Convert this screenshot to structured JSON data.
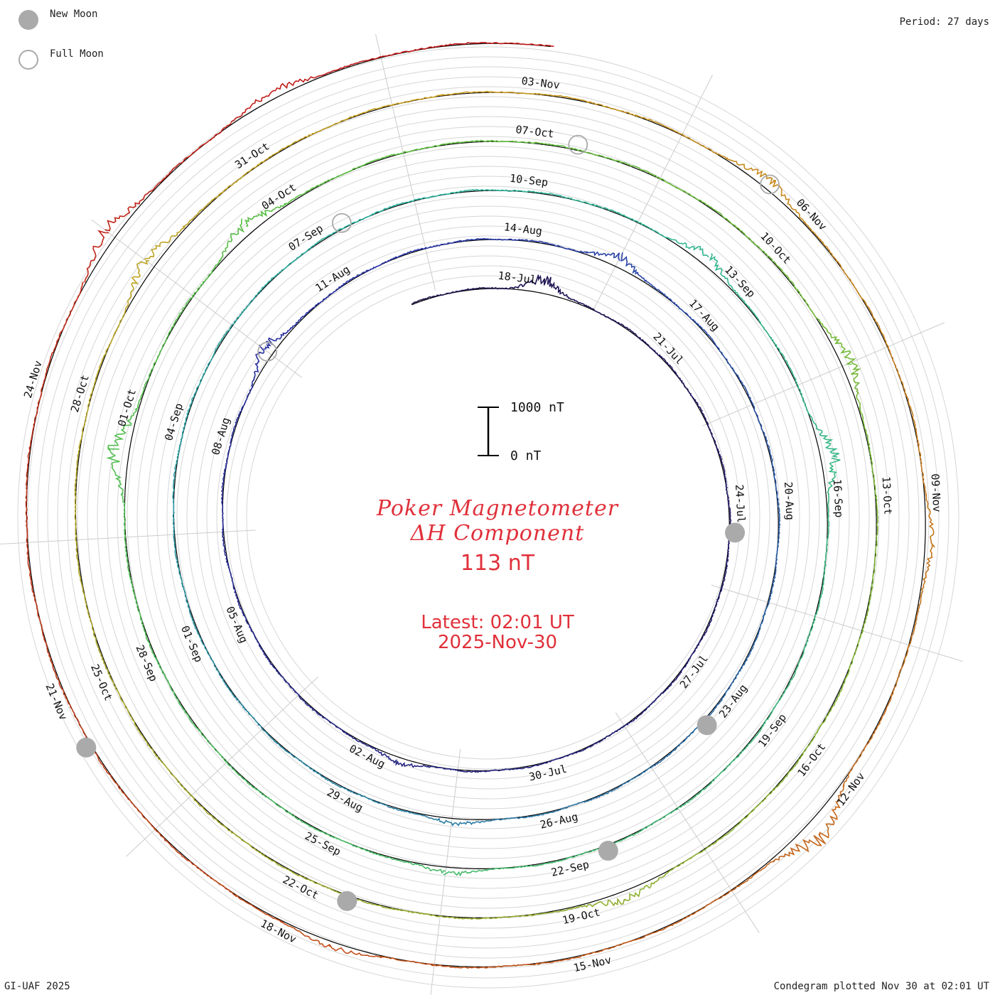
{
  "legend": {
    "new_moon": "New Moon",
    "full_moon": "Full Moon",
    "new_moon_color": "#aaaaaa"
  },
  "period_label": "Period: 27 days",
  "credit": "GI-UAF 2025",
  "plotted": "Condegram plotted Nov 30 at 02:01 UT",
  "title": {
    "line1": "Poker Magnetometer",
    "line2": "ΔH Component",
    "value": "113 nT",
    "latest": "Latest: 02:01 UT",
    "date": "2025-Nov-30",
    "color": "#e0303a"
  },
  "chart_data": {
    "type": "line",
    "title": "Poker Magnetometer ΔH Component",
    "period_days": 27,
    "start_date": "2025-07-16",
    "end_date": "2025-11-30",
    "scale_bar": {
      "top_label": "1000 nT",
      "bottom_label": "0 nT",
      "range_nT": [
        0,
        1000
      ]
    },
    "latest_value_nT": 113,
    "cycles": [
      {
        "color": "#1e0f4a",
        "date_labels": [
          "18-Jul",
          "21-Jul",
          "24-Jul",
          "27-Jul",
          "30-Jul",
          "02-Aug",
          "05-Aug",
          "08-Aug",
          "11-Aug"
        ]
      },
      {
        "color": "#2a35a8",
        "date_labels": [
          "14-Aug",
          "17-Aug",
          "20-Aug",
          "23-Aug",
          "26-Aug",
          "29-Aug",
          "01-Sep",
          "04-Sep",
          "07-Sep"
        ]
      },
      {
        "color": "#2bb4a0",
        "date_labels": [
          "10-Sep",
          "13-Sep",
          "16-Sep",
          "19-Sep",
          "22-Sep",
          "25-Sep",
          "28-Sep",
          "01-Oct",
          "04-Oct"
        ]
      },
      {
        "color": "#5cc040",
        "date_labels": [
          "07-Oct",
          "10-Oct",
          "13-Oct",
          "16-Oct",
          "19-Oct",
          "22-Oct",
          "25-Oct",
          "28-Oct",
          "31-Oct"
        ]
      },
      {
        "color": "#c8a020",
        "date_labels": [
          "03-Nov",
          "06-Nov",
          "09-Nov",
          "12-Nov",
          "15-Nov",
          "18-Nov",
          "21-Nov",
          "24-Nov"
        ]
      },
      {
        "color": "#c01818",
        "date_labels": []
      }
    ],
    "new_moon_dates": [
      "2025-07-24",
      "2025-08-23",
      "2025-09-21",
      "2025-10-21",
      "2025-11-20"
    ],
    "full_moon_dates": [
      "2025-08-09",
      "2025-09-07",
      "2025-10-07",
      "2025-11-05"
    ],
    "disturbances": [
      {
        "date": "2025-07-18",
        "peak_nT": 400
      },
      {
        "date": "2025-08-01",
        "peak_nT": 150
      },
      {
        "date": "2025-08-09",
        "peak_nT": 320
      },
      {
        "date": "2025-08-15",
        "peak_nT": 300
      },
      {
        "date": "2025-08-27",
        "peak_nT": 120
      },
      {
        "date": "2025-09-12",
        "peak_nT": 280
      },
      {
        "date": "2025-09-15",
        "peak_nT": 400
      },
      {
        "date": "2025-09-23",
        "peak_nT": 150
      },
      {
        "date": "2025-09-30",
        "peak_nT": 450
      },
      {
        "date": "2025-10-03",
        "peak_nT": 350
      },
      {
        "date": "2025-10-11",
        "peak_nT": 300
      },
      {
        "date": "2025-10-18",
        "peak_nT": 250
      },
      {
        "date": "2025-10-29",
        "peak_nT": 350
      },
      {
        "date": "2025-11-05",
        "peak_nT": 250
      },
      {
        "date": "2025-11-09",
        "peak_nT": 200
      },
      {
        "date": "2025-11-12",
        "peak_nT": 550
      },
      {
        "date": "2025-11-17",
        "peak_nT": 150
      },
      {
        "date": "2025-11-25",
        "peak_nT": 350
      },
      {
        "date": "2025-11-27",
        "peak_nT": 200
      }
    ]
  }
}
